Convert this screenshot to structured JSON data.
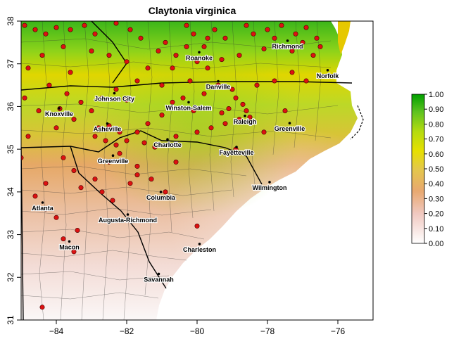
{
  "title": "Claytonia virginica",
  "map": {
    "lon_range": [
      -85,
      -75
    ],
    "lat_range": [
      31,
      38
    ],
    "x_ticks": [
      -84,
      -82,
      -80,
      -78,
      -76
    ],
    "x_tick_labels": [
      "−84",
      "−82",
      "−80",
      "−78",
      "−76"
    ],
    "y_ticks": [
      31,
      32,
      33,
      34,
      35,
      36,
      37,
      38
    ],
    "y_tick_labels": [
      "31",
      "32",
      "33",
      "34",
      "35",
      "36",
      "37",
      "38"
    ]
  },
  "colorbar": {
    "ticks": [
      "0.00",
      "0.10",
      "0.20",
      "0.30",
      "0.40",
      "0.50",
      "0.60",
      "0.70",
      "0.80",
      "0.90",
      "1.00"
    ]
  },
  "colors": {
    "occurrence": "#dd1111",
    "low": "#ffffff",
    "mid": "#e9b25c",
    "midhigh": "#e6e000",
    "high": "#00a000"
  },
  "cities": [
    {
      "name": "Richmond",
      "lon": -77.43,
      "lat": 37.54
    },
    {
      "name": "Roanoke",
      "lon": -79.94,
      "lat": 37.27
    },
    {
      "name": "Norfolk",
      "lon": -76.29,
      "lat": 36.85
    },
    {
      "name": "Danville",
      "lon": -79.4,
      "lat": 36.59
    },
    {
      "name": "Johnson City",
      "lon": -82.35,
      "lat": 36.31
    },
    {
      "name": "Winston-Salem",
      "lon": -80.24,
      "lat": 36.1
    },
    {
      "name": "Knoxville",
      "lon": -83.92,
      "lat": 35.96
    },
    {
      "name": "Raleigh",
      "lon": -78.64,
      "lat": 35.78
    },
    {
      "name": "Greenville",
      "lon": -77.37,
      "lat": 35.61
    },
    {
      "name": "Asheville",
      "lon": -82.55,
      "lat": 35.6
    },
    {
      "name": "Charlotte",
      "lon": -80.84,
      "lat": 35.23
    },
    {
      "name": "Fayetteville",
      "lon": -78.88,
      "lat": 35.05
    },
    {
      "name": "Greenville",
      "lon": -82.39,
      "lat": 34.85
    },
    {
      "name": "Wilmington",
      "lon": -77.94,
      "lat": 34.23
    },
    {
      "name": "Columbia",
      "lon": -81.03,
      "lat": 34.0
    },
    {
      "name": "Atlanta",
      "lon": -84.39,
      "lat": 33.75
    },
    {
      "name": "Augusta-Richmond",
      "lon": -81.97,
      "lat": 33.47
    },
    {
      "name": "Macon",
      "lon": -83.63,
      "lat": 32.84
    },
    {
      "name": "Charleston",
      "lon": -79.93,
      "lat": 32.78
    },
    {
      "name": "Savannah",
      "lon": -81.09,
      "lat": 32.08
    }
  ],
  "occurrences": [
    [
      -84.9,
      37.9
    ],
    [
      -84.6,
      37.8
    ],
    [
      -84.3,
      37.7
    ],
    [
      -84.0,
      37.85
    ],
    [
      -83.6,
      37.8
    ],
    [
      -83.2,
      37.9
    ],
    [
      -82.9,
      37.7
    ],
    [
      -82.3,
      37.95
    ],
    [
      -81.9,
      37.8
    ],
    [
      -81.6,
      37.6
    ],
    [
      -81.1,
      37.3
    ],
    [
      -80.9,
      37.5
    ],
    [
      -80.6,
      37.2
    ],
    [
      -80.3,
      37.9
    ],
    [
      -80.1,
      37.7
    ],
    [
      -79.8,
      37.4
    ],
    [
      -79.5,
      37.8
    ],
    [
      -79.2,
      37.6
    ],
    [
      -78.6,
      37.9
    ],
    [
      -78.4,
      37.7
    ],
    [
      -78.0,
      37.8
    ],
    [
      -77.8,
      37.6
    ],
    [
      -77.6,
      37.9
    ],
    [
      -77.2,
      37.7
    ],
    [
      -77.0,
      37.5
    ],
    [
      -76.9,
      37.85
    ],
    [
      -76.6,
      37.6
    ],
    [
      -76.5,
      37.4
    ],
    [
      -76.7,
      37.2
    ],
    [
      -77.3,
      37.3
    ],
    [
      -78.1,
      37.35
    ],
    [
      -78.8,
      37.2
    ],
    [
      -79.3,
      37.1
    ],
    [
      -80.0,
      37.05
    ],
    [
      -80.7,
      36.9
    ],
    [
      -81.4,
      36.9
    ],
    [
      -82.0,
      37.05
    ],
    [
      -82.5,
      37.2
    ],
    [
      -83.0,
      37.3
    ],
    [
      -83.8,
      37.4
    ],
    [
      -84.4,
      37.2
    ],
    [
      -84.8,
      36.9
    ],
    [
      -84.2,
      36.5
    ],
    [
      -83.7,
      36.3
    ],
    [
      -83.3,
      36.1
    ],
    [
      -83.9,
      35.95
    ],
    [
      -84.5,
      35.9
    ],
    [
      -84.0,
      35.5
    ],
    [
      -83.5,
      35.7
    ],
    [
      -83.0,
      35.9
    ],
    [
      -82.7,
      36.2
    ],
    [
      -82.3,
      36.4
    ],
    [
      -82.0,
      36.15
    ],
    [
      -82.8,
      35.5
    ],
    [
      -82.5,
      35.55
    ],
    [
      -82.2,
      35.4
    ],
    [
      -82.6,
      35.2
    ],
    [
      -82.9,
      35.3
    ],
    [
      -82.3,
      35.1
    ],
    [
      -82.0,
      35.2
    ],
    [
      -81.7,
      35.4
    ],
    [
      -81.4,
      35.6
    ],
    [
      -81.0,
      35.8
    ],
    [
      -80.7,
      36.1
    ],
    [
      -80.4,
      36.2
    ],
    [
      -80.1,
      35.9
    ],
    [
      -79.8,
      36.3
    ],
    [
      -79.4,
      36.5
    ],
    [
      -79.0,
      36.4
    ],
    [
      -78.9,
      36.2
    ],
    [
      -78.7,
      36.05
    ],
    [
      -79.1,
      35.95
    ],
    [
      -79.3,
      35.85
    ],
    [
      -78.6,
      35.9
    ],
    [
      -78.5,
      35.75
    ],
    [
      -78.8,
      35.7
    ],
    [
      -79.2,
      35.6
    ],
    [
      -79.6,
      35.5
    ],
    [
      -80.0,
      35.4
    ],
    [
      -80.6,
      35.3
    ],
    [
      -81.2,
      35.05
    ],
    [
      -81.5,
      35.15
    ],
    [
      -78.9,
      35.0
    ],
    [
      -78.3,
      36.5
    ],
    [
      -77.8,
      36.6
    ],
    [
      -77.3,
      36.8
    ],
    [
      -76.9,
      36.6
    ],
    [
      -76.5,
      36.7
    ],
    [
      -81.7,
      34.6
    ],
    [
      -82.2,
      34.9
    ],
    [
      -82.5,
      34.7
    ],
    [
      -82.9,
      34.3
    ],
    [
      -83.3,
      34.1
    ],
    [
      -83.5,
      34.5
    ],
    [
      -83.8,
      34.8
    ],
    [
      -84.3,
      34.2
    ],
    [
      -84.6,
      33.9
    ],
    [
      -84.3,
      33.6
    ],
    [
      -84.0,
      33.4
    ],
    [
      -83.4,
      33.1
    ],
    [
      -83.8,
      32.9
    ],
    [
      -83.5,
      32.6
    ],
    [
      -82.7,
      34.0
    ],
    [
      -82.4,
      33.8
    ],
    [
      -81.9,
      34.2
    ],
    [
      -81.3,
      34.3
    ],
    [
      -80.9,
      34.0
    ],
    [
      -81.7,
      34.4
    ],
    [
      -80.0,
      33.2
    ],
    [
      -80.6,
      34.7
    ],
    [
      -84.4,
      31.3
    ],
    [
      -85.0,
      34.8
    ],
    [
      -84.8,
      35.3
    ],
    [
      -84.9,
      36.2
    ],
    [
      -83.6,
      36.8
    ],
    [
      -81.0,
      36.5
    ],
    [
      -81.7,
      36.6
    ],
    [
      -80.2,
      36.6
    ],
    [
      -79.7,
      36.9
    ],
    [
      -77.5,
      35.9
    ],
    [
      -78.1,
      35.4
    ],
    [
      -80.3,
      37.4
    ],
    [
      -79.7,
      37.6
    ]
  ]
}
